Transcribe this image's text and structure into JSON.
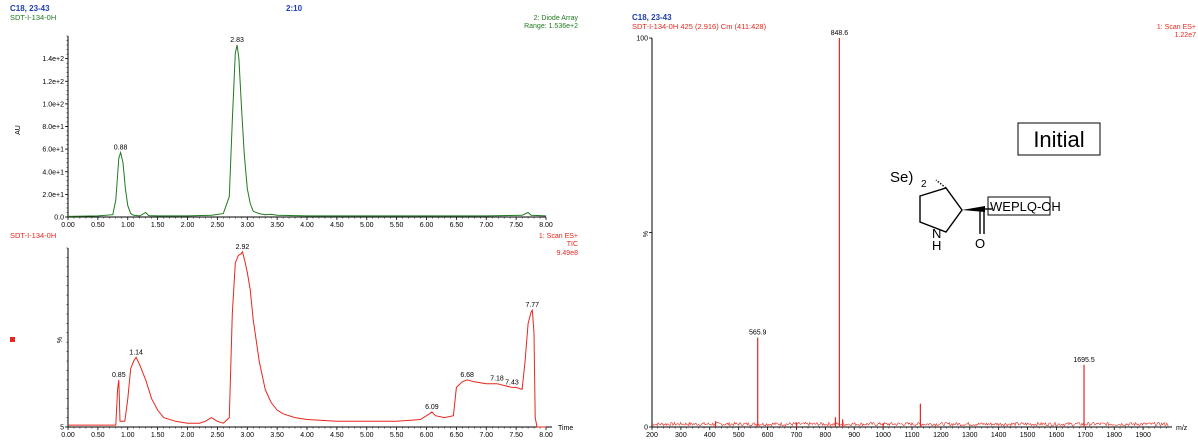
{
  "colors": {
    "uv": "#1f7a1f",
    "tic": "#e8261d",
    "ms": "#e8261d",
    "header_blue": "#1f3fb0",
    "black": "#000000"
  },
  "header_left": {
    "line1": "C18, 23-43",
    "line2": "SDT-I-134-0H",
    "center": "2:10"
  },
  "header_right": {
    "line1": "C18, 23-43",
    "line2": "SDT-I-134-0H 425 (2.916) Cm (411:428)"
  },
  "chart_data": [
    {
      "type": "line",
      "id": "uv",
      "trace_label": "2: Diode Array",
      "range_label": "Range: 1.536e+2",
      "ylabel": "AU",
      "xlim": [
        0,
        8.0
      ],
      "ylim": [
        0,
        160
      ],
      "x_ticks": [
        "0.00",
        "0.50",
        "1.00",
        "1.50",
        "2.00",
        "2.50",
        "3.00",
        "3.50",
        "4.00",
        "4.50",
        "5.00",
        "5.50",
        "6.00",
        "6.50",
        "7.00",
        "7.50",
        "8.00"
      ],
      "y_ticks": [
        {
          "label": "0.0",
          "value": 0
        },
        {
          "label": "2.0e+1",
          "value": 20
        },
        {
          "label": "4.0e+1",
          "value": 40
        },
        {
          "label": "6.0e+1",
          "value": 60
        },
        {
          "label": "8.0e+1",
          "value": 80
        },
        {
          "label": "1.0e+2",
          "value": 100
        },
        {
          "label": "1.2e+2",
          "value": 120
        },
        {
          "label": "1.4e+2",
          "value": 140
        }
      ],
      "peaks": [
        {
          "x": 0.88,
          "label": "0.88"
        },
        {
          "x": 2.83,
          "label": "2.83"
        }
      ],
      "points": [
        [
          0.0,
          0.5
        ],
        [
          0.5,
          1
        ],
        [
          0.75,
          2
        ],
        [
          0.8,
          15
        ],
        [
          0.85,
          52
        ],
        [
          0.88,
          57
        ],
        [
          0.92,
          48
        ],
        [
          0.96,
          25
        ],
        [
          1.0,
          10
        ],
        [
          1.05,
          3
        ],
        [
          1.1,
          1.5
        ],
        [
          1.2,
          1
        ],
        [
          1.3,
          4
        ],
        [
          1.35,
          1.2
        ],
        [
          1.5,
          1
        ],
        [
          2.0,
          1
        ],
        [
          2.4,
          1.5
        ],
        [
          2.6,
          3
        ],
        [
          2.7,
          18
        ],
        [
          2.75,
          85
        ],
        [
          2.8,
          145
        ],
        [
          2.83,
          152
        ],
        [
          2.86,
          140
        ],
        [
          2.9,
          100
        ],
        [
          2.95,
          55
        ],
        [
          3.0,
          25
        ],
        [
          3.05,
          12
        ],
        [
          3.1,
          5
        ],
        [
          3.2,
          3
        ],
        [
          3.3,
          2
        ],
        [
          3.4,
          2.5
        ],
        [
          3.5,
          1.5
        ],
        [
          4.0,
          1
        ],
        [
          5.0,
          1
        ],
        [
          6.0,
          1
        ],
        [
          7.0,
          1
        ],
        [
          7.6,
          1.5
        ],
        [
          7.7,
          4
        ],
        [
          7.75,
          1.5
        ],
        [
          8.0,
          1
        ]
      ]
    },
    {
      "type": "line",
      "id": "tic",
      "sample": "SDT-I-134-0H",
      "trace_label": "1: Scan ES+",
      "trace_type": "TIC",
      "intensity": "9.49e8",
      "ylabel": "%",
      "xlabel": "Time",
      "xlim": [
        0,
        8.0
      ],
      "ylim": [
        5,
        100
      ],
      "y_ticks": [
        {
          "label": "5",
          "value": 5
        }
      ],
      "x_ticks": [
        "0.00",
        "0.50",
        "1.00",
        "1.50",
        "2.00",
        "2.50",
        "3.00",
        "3.50",
        "4.00",
        "4.50",
        "5.00",
        "5.50",
        "6.00",
        "6.50",
        "7.00",
        "7.50",
        "8.00"
      ],
      "peaks": [
        {
          "x": 0.85,
          "label": "0.85"
        },
        {
          "x": 1.14,
          "label": "1.14"
        },
        {
          "x": 2.92,
          "label": "2.92"
        },
        {
          "x": 6.09,
          "label": "6.09"
        },
        {
          "x": 6.68,
          "label": "6.68"
        },
        {
          "x": 7.18,
          "label": "7.18"
        },
        {
          "x": 7.43,
          "label": "7.43"
        },
        {
          "x": 7.77,
          "label": "7.77"
        }
      ],
      "points": [
        [
          0.0,
          6
        ],
        [
          0.6,
          6
        ],
        [
          0.8,
          6
        ],
        [
          0.83,
          25
        ],
        [
          0.85,
          30
        ],
        [
          0.87,
          8
        ],
        [
          0.95,
          8
        ],
        [
          1.0,
          20
        ],
        [
          1.05,
          36
        ],
        [
          1.1,
          40
        ],
        [
          1.14,
          42
        ],
        [
          1.2,
          38
        ],
        [
          1.3,
          30
        ],
        [
          1.4,
          20
        ],
        [
          1.5,
          14
        ],
        [
          1.6,
          10
        ],
        [
          1.8,
          8
        ],
        [
          2.0,
          7
        ],
        [
          2.2,
          7
        ],
        [
          2.3,
          8
        ],
        [
          2.4,
          10
        ],
        [
          2.5,
          8
        ],
        [
          2.6,
          7
        ],
        [
          2.7,
          10
        ],
        [
          2.75,
          65
        ],
        [
          2.8,
          92
        ],
        [
          2.85,
          96
        ],
        [
          2.9,
          97
        ],
        [
          2.92,
          98
        ],
        [
          2.96,
          93
        ],
        [
          3.0,
          87
        ],
        [
          3.05,
          78
        ],
        [
          3.1,
          62
        ],
        [
          3.2,
          40
        ],
        [
          3.3,
          25
        ],
        [
          3.4,
          18
        ],
        [
          3.5,
          14
        ],
        [
          3.6,
          12
        ],
        [
          3.8,
          10
        ],
        [
          4.0,
          9
        ],
        [
          4.5,
          8
        ],
        [
          5.0,
          8
        ],
        [
          5.5,
          8
        ],
        [
          5.9,
          9
        ],
        [
          6.0,
          11
        ],
        [
          6.05,
          12
        ],
        [
          6.09,
          13
        ],
        [
          6.15,
          11
        ],
        [
          6.3,
          10
        ],
        [
          6.45,
          11
        ],
        [
          6.5,
          26
        ],
        [
          6.6,
          29
        ],
        [
          6.68,
          30
        ],
        [
          6.8,
          29
        ],
        [
          7.0,
          28
        ],
        [
          7.18,
          28
        ],
        [
          7.3,
          27
        ],
        [
          7.43,
          26
        ],
        [
          7.5,
          26
        ],
        [
          7.6,
          25
        ],
        [
          7.65,
          40
        ],
        [
          7.7,
          60
        ],
        [
          7.75,
          66
        ],
        [
          7.77,
          67
        ],
        [
          7.8,
          55
        ],
        [
          7.82,
          10
        ],
        [
          7.85,
          5
        ],
        [
          8.0,
          5
        ]
      ]
    },
    {
      "type": "line",
      "id": "ms",
      "trace_label": "1: Scan ES+",
      "intensity": "1.22e7",
      "ylabel": "%",
      "xlabel": "m/z",
      "xlim": [
        200,
        2000
      ],
      "ylim": [
        0,
        100
      ],
      "y_ticks": [
        {
          "label": "100",
          "value": 100
        },
        {
          "label": "0",
          "value": 0
        }
      ],
      "x_ticks": [
        "200",
        "300",
        "400",
        "500",
        "600",
        "700",
        "800",
        "900",
        "1000",
        "1100",
        "1200",
        "1300",
        "1400",
        "1500",
        "1600",
        "1700",
        "1800",
        "1900"
      ],
      "peaks": [
        {
          "x": 848.6,
          "label": "848.6"
        },
        {
          "x": 565.9,
          "label": "565.9"
        },
        {
          "x": 1695.5,
          "label": "1695.5"
        }
      ],
      "sticks": [
        [
          848.6,
          100
        ],
        [
          565.9,
          23
        ],
        [
          1695.5,
          16
        ],
        [
          1129,
          6
        ],
        [
          835,
          2.5
        ],
        [
          860,
          2
        ],
        [
          420,
          1.5
        ],
        [
          700,
          1.2
        ],
        [
          1000,
          1
        ]
      ],
      "annotation": {
        "label": "Initial",
        "box_text": "WEPLQ-OH",
        "se": "Se)",
        "se_sub": "2",
        "nh": "N",
        "h": "H",
        "o": "O"
      }
    }
  ]
}
